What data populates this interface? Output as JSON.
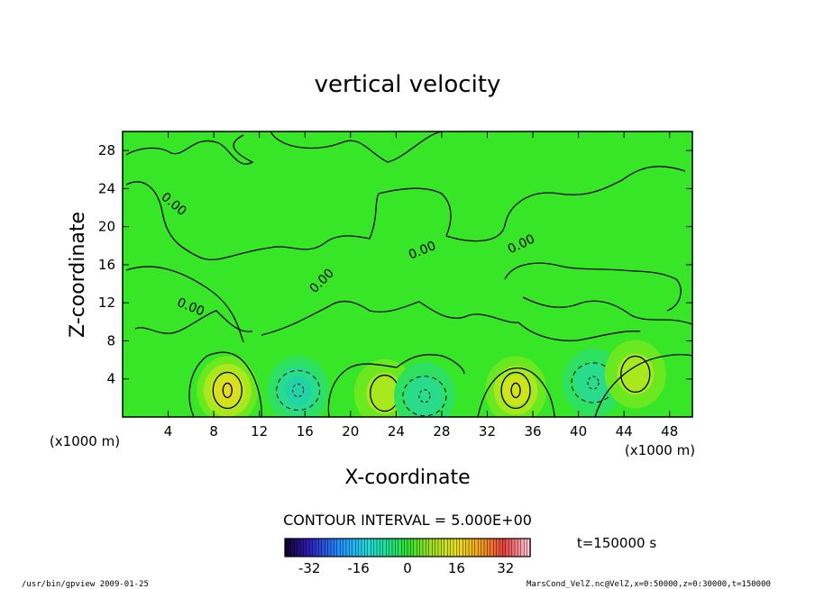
{
  "chart_data": {
    "type": "heatmap",
    "title": "vertical velocity",
    "xlabel": "X-coordinate",
    "ylabel": "Z-coordinate",
    "x_unit": "(x1000 m)",
    "y_unit": "(x1000 m)",
    "xlim": [
      0,
      50
    ],
    "ylim": [
      0,
      30
    ],
    "x_ticks": [
      4,
      8,
      12,
      16,
      20,
      24,
      28,
      32,
      36,
      40,
      44,
      48
    ],
    "y_ticks": [
      4,
      8,
      12,
      16,
      20,
      24,
      28
    ],
    "contour_interval_text": "CONTOUR INTERVAL = 5.000E+00",
    "contour_labels": [
      "0.00",
      "0.00",
      "0.00",
      "0.00",
      "0.00"
    ],
    "time_label": "t=150000 s",
    "colorbar": {
      "min": -40,
      "max": 40,
      "ticks": [
        -32,
        -16,
        0,
        16,
        32
      ]
    },
    "features": [
      {
        "kind": "updraft",
        "x": 9.2,
        "z": 2.8,
        "value": 15
      },
      {
        "kind": "downdraft",
        "x": 15.4,
        "z": 2.8,
        "value": -10
      },
      {
        "kind": "updraft",
        "x": 23.0,
        "z": 2.5,
        "value": 7
      },
      {
        "kind": "downdraft",
        "x": 26.5,
        "z": 2.2,
        "value": -8
      },
      {
        "kind": "updraft",
        "x": 34.5,
        "z": 2.8,
        "value": 12
      },
      {
        "kind": "downdraft",
        "x": 41.3,
        "z": 3.6,
        "value": -8
      },
      {
        "kind": "updraft",
        "x": 45.0,
        "z": 4.5,
        "value": 6
      }
    ]
  },
  "footer": {
    "left": "/usr/bin/gpview   2009-01-25",
    "right": "MarsCond_VelZ.nc@VelZ,x=0:50000,z=0:30000,t=150000"
  }
}
